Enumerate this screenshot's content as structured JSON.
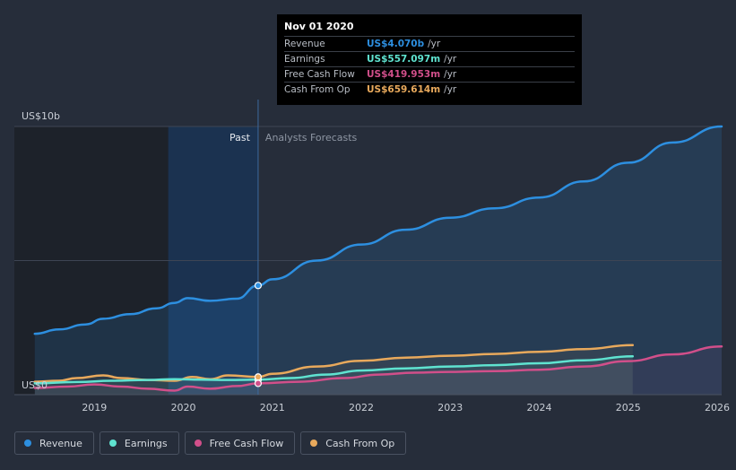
{
  "tooltip": {
    "date": "Nov 01 2020",
    "rows": [
      {
        "label": "Revenue",
        "value": "US$4.070b",
        "unit": "/yr",
        "color": "#2d8fe0"
      },
      {
        "label": "Earnings",
        "value": "US$557.097m",
        "unit": "/yr",
        "color": "#5fe3d0"
      },
      {
        "label": "Free Cash Flow",
        "value": "US$419.953m",
        "unit": "/yr",
        "color": "#d14f8a"
      },
      {
        "label": "Cash From Op",
        "value": "US$659.614m",
        "unit": "/yr",
        "color": "#e8a95c"
      }
    ]
  },
  "legend": [
    {
      "label": "Revenue",
      "color": "#2d8fe0"
    },
    {
      "label": "Earnings",
      "color": "#5fe3d0"
    },
    {
      "label": "Free Cash Flow",
      "color": "#d14f8a"
    },
    {
      "label": "Cash From Op",
      "color": "#e8a95c"
    }
  ],
  "chart_data": {
    "type": "line",
    "ylabel_top": "US$10b",
    "ylabel_bottom": "US$0",
    "ylim": [
      0,
      10
    ],
    "xlim": [
      2018.1,
      2026.05
    ],
    "x_ticks": [
      {
        "value": 2019,
        "label": "2019"
      },
      {
        "value": 2020,
        "label": "2020"
      },
      {
        "value": 2021,
        "label": "2021"
      },
      {
        "value": 2022,
        "label": "2022"
      },
      {
        "value": 2023,
        "label": "2023"
      },
      {
        "value": 2024,
        "label": "2024"
      },
      {
        "value": 2025,
        "label": "2025"
      },
      {
        "value": 2026,
        "label": "2026"
      }
    ],
    "past_label": "Past",
    "forecast_label": "Analysts Forecasts",
    "divider_x": 2020.84,
    "highlight_start": 2019.83,
    "series": [
      {
        "name": "Revenue",
        "color": "#2d8fe0",
        "points": [
          [
            2018.33,
            2.27
          ],
          [
            2018.6,
            2.43
          ],
          [
            2018.9,
            2.62
          ],
          [
            2019.1,
            2.83
          ],
          [
            2019.4,
            3.0
          ],
          [
            2019.7,
            3.22
          ],
          [
            2019.9,
            3.42
          ],
          [
            2020.05,
            3.6
          ],
          [
            2020.3,
            3.5
          ],
          [
            2020.6,
            3.58
          ],
          [
            2020.84,
            4.07
          ],
          [
            2021.0,
            4.3
          ],
          [
            2021.5,
            5.0
          ],
          [
            2022.0,
            5.6
          ],
          [
            2022.5,
            6.15
          ],
          [
            2023.0,
            6.6
          ],
          [
            2023.5,
            6.95
          ],
          [
            2024.0,
            7.35
          ],
          [
            2024.5,
            7.95
          ],
          [
            2025.0,
            8.65
          ],
          [
            2025.5,
            9.4
          ],
          [
            2026.05,
            10.0
          ]
        ]
      },
      {
        "name": "Earnings",
        "color": "#5fe3d0",
        "points": [
          [
            2018.33,
            0.42
          ],
          [
            2018.8,
            0.47
          ],
          [
            2019.2,
            0.52
          ],
          [
            2019.6,
            0.55
          ],
          [
            2019.9,
            0.58
          ],
          [
            2020.2,
            0.56
          ],
          [
            2020.5,
            0.55
          ],
          [
            2020.84,
            0.557
          ],
          [
            2021.2,
            0.62
          ],
          [
            2021.6,
            0.75
          ],
          [
            2022.0,
            0.9
          ],
          [
            2022.5,
            0.98
          ],
          [
            2023.0,
            1.05
          ],
          [
            2023.5,
            1.1
          ],
          [
            2024.0,
            1.17
          ],
          [
            2024.5,
            1.28
          ],
          [
            2025.05,
            1.43
          ]
        ]
      },
      {
        "name": "Free Cash Flow",
        "color": "#d14f8a",
        "points": [
          [
            2018.33,
            0.25
          ],
          [
            2018.7,
            0.3
          ],
          [
            2019.0,
            0.38
          ],
          [
            2019.3,
            0.3
          ],
          [
            2019.6,
            0.22
          ],
          [
            2019.9,
            0.15
          ],
          [
            2020.05,
            0.3
          ],
          [
            2020.3,
            0.22
          ],
          [
            2020.6,
            0.32
          ],
          [
            2020.84,
            0.42
          ],
          [
            2021.3,
            0.48
          ],
          [
            2021.8,
            0.62
          ],
          [
            2022.2,
            0.75
          ],
          [
            2022.6,
            0.82
          ],
          [
            2023.0,
            0.85
          ],
          [
            2023.5,
            0.88
          ],
          [
            2024.0,
            0.93
          ],
          [
            2024.5,
            1.05
          ],
          [
            2025.0,
            1.25
          ],
          [
            2025.5,
            1.5
          ],
          [
            2026.05,
            1.8
          ]
        ]
      },
      {
        "name": "Cash From Op",
        "color": "#e8a95c",
        "points": [
          [
            2018.33,
            0.48
          ],
          [
            2018.6,
            0.52
          ],
          [
            2018.8,
            0.62
          ],
          [
            2019.1,
            0.72
          ],
          [
            2019.3,
            0.62
          ],
          [
            2019.6,
            0.55
          ],
          [
            2019.9,
            0.52
          ],
          [
            2020.1,
            0.66
          ],
          [
            2020.3,
            0.58
          ],
          [
            2020.5,
            0.72
          ],
          [
            2020.84,
            0.66
          ],
          [
            2021.0,
            0.78
          ],
          [
            2021.5,
            1.05
          ],
          [
            2022.0,
            1.26
          ],
          [
            2022.5,
            1.38
          ],
          [
            2023.0,
            1.45
          ],
          [
            2023.5,
            1.52
          ],
          [
            2024.0,
            1.6
          ],
          [
            2024.5,
            1.7
          ],
          [
            2025.05,
            1.85
          ]
        ]
      }
    ]
  }
}
